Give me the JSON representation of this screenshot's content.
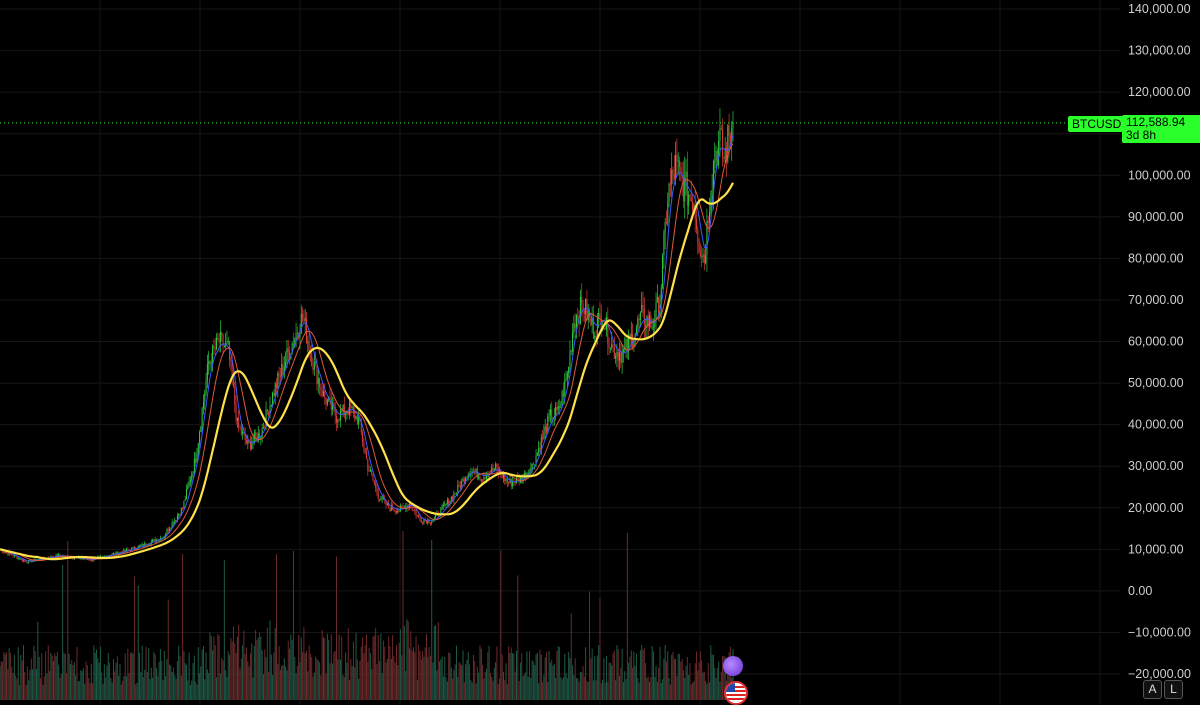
{
  "colors": {
    "up": "#2ecc40",
    "down": "#e03a3a",
    "ma_fast": "#3b5bff",
    "ma_mid": "#e0593a",
    "ma_slow": "#ffe14a",
    "price_line": "#2bff2b",
    "background": "#000000"
  },
  "price_tag": {
    "symbol": "BTCUSD",
    "price": "112,588.94",
    "countdown": "3d 8h"
  },
  "buttons": {
    "auto_label": "A",
    "log_label": "L"
  },
  "icons": [
    "bolt-icon",
    "us-flag-icon"
  ],
  "chart_data": {
    "type": "candlestick",
    "ylim": [
      -20000,
      140000
    ],
    "grid": true,
    "y_tick_labels": [
      "140,000.00",
      "130,000.00",
      "120,000.00",
      "100,000.00",
      "90,000.00",
      "80,000.00",
      "70,000.00",
      "60,000.00",
      "50,000.00",
      "40,000.00",
      "30,000.00",
      "20,000.00",
      "10,000.00",
      "0.00",
      "−10,000.00",
      "−20,000.00"
    ],
    "y_tick_values": [
      140000,
      130000,
      120000,
      100000,
      90000,
      80000,
      70000,
      60000,
      50000,
      40000,
      30000,
      20000,
      10000,
      0,
      -10000,
      -20000
    ],
    "last_price": 112588.94,
    "price_keypoints": [
      [
        0,
        10000
      ],
      [
        20,
        7000
      ],
      [
        45,
        8500
      ],
      [
        70,
        7500
      ],
      [
        95,
        9500
      ],
      [
        110,
        11000
      ],
      [
        125,
        13000
      ],
      [
        140,
        20000
      ],
      [
        150,
        32000
      ],
      [
        160,
        55000
      ],
      [
        168,
        60000
      ],
      [
        175,
        58000
      ],
      [
        182,
        40000
      ],
      [
        190,
        35000
      ],
      [
        200,
        38000
      ],
      [
        210,
        48000
      ],
      [
        222,
        58000
      ],
      [
        232,
        66000
      ],
      [
        240,
        55000
      ],
      [
        248,
        47000
      ],
      [
        258,
        42000
      ],
      [
        268,
        44000
      ],
      [
        275,
        41000
      ],
      [
        282,
        30000
      ],
      [
        290,
        23000
      ],
      [
        298,
        20000
      ],
      [
        306,
        19500
      ],
      [
        314,
        21000
      ],
      [
        322,
        17000
      ],
      [
        332,
        17000
      ],
      [
        340,
        20000
      ],
      [
        350,
        24000
      ],
      [
        360,
        29000
      ],
      [
        370,
        27500
      ],
      [
        380,
        29500
      ],
      [
        390,
        26000
      ],
      [
        400,
        27000
      ],
      [
        408,
        30000
      ],
      [
        415,
        36000
      ],
      [
        422,
        42000
      ],
      [
        428,
        43000
      ],
      [
        435,
        52000
      ],
      [
        440,
        65000
      ],
      [
        447,
        69000
      ],
      [
        455,
        63000
      ],
      [
        462,
        66000
      ],
      [
        470,
        58000
      ],
      [
        478,
        57000
      ],
      [
        486,
        62000
      ],
      [
        492,
        66000
      ],
      [
        500,
        64000
      ],
      [
        506,
        70000
      ],
      [
        512,
        95000
      ],
      [
        518,
        102000
      ],
      [
        522,
        99000
      ],
      [
        527,
        96000
      ],
      [
        532,
        94000
      ],
      [
        536,
        84000
      ],
      [
        540,
        80000
      ],
      [
        544,
        95000
      ],
      [
        548,
        105000
      ],
      [
        552,
        108000
      ],
      [
        555,
        104000
      ],
      [
        558,
        108000
      ],
      [
        562,
        112588.94
      ]
    ],
    "n_candles": 563,
    "volume_scale_max": 100
  }
}
